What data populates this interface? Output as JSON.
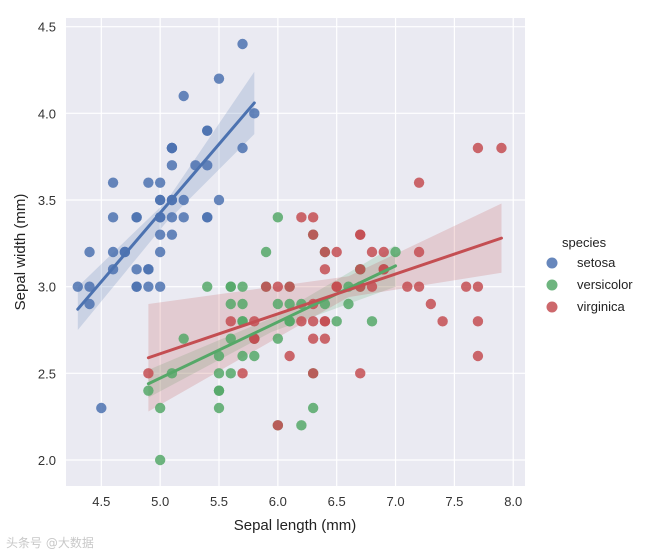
{
  "chart_data": {
    "type": "scatter",
    "title": "",
    "xlabel": "Sepal length (mm)",
    "ylabel": "Sepal width (mm)",
    "xlim": [
      4.2,
      8.1
    ],
    "ylim": [
      1.85,
      4.55
    ],
    "xticks": [
      "4.5",
      "5.0",
      "5.5",
      "6.0",
      "6.5",
      "7.0",
      "7.5",
      "8.0"
    ],
    "yticks": [
      "2.0",
      "2.5",
      "3.0",
      "3.5",
      "4.0",
      "4.5"
    ],
    "grid": true,
    "background": "#eaeaf2",
    "legend": {
      "title": "species",
      "placement": "right"
    },
    "series": [
      {
        "name": "setosa",
        "color": "#4c72b0",
        "points": [
          [
            5.1,
            3.5
          ],
          [
            4.9,
            3.0
          ],
          [
            4.7,
            3.2
          ],
          [
            4.6,
            3.1
          ],
          [
            5.0,
            3.6
          ],
          [
            5.4,
            3.9
          ],
          [
            4.6,
            3.4
          ],
          [
            5.0,
            3.4
          ],
          [
            4.4,
            2.9
          ],
          [
            4.9,
            3.1
          ],
          [
            5.4,
            3.7
          ],
          [
            4.8,
            3.4
          ],
          [
            4.8,
            3.0
          ],
          [
            4.3,
            3.0
          ],
          [
            5.8,
            4.0
          ],
          [
            5.7,
            4.4
          ],
          [
            5.4,
            3.9
          ],
          [
            5.1,
            3.5
          ],
          [
            5.7,
            3.8
          ],
          [
            5.1,
            3.8
          ],
          [
            5.4,
            3.4
          ],
          [
            5.1,
            3.7
          ],
          [
            4.6,
            3.6
          ],
          [
            5.1,
            3.3
          ],
          [
            4.8,
            3.4
          ],
          [
            5.0,
            3.0
          ],
          [
            5.0,
            3.4
          ],
          [
            5.2,
            3.5
          ],
          [
            5.2,
            3.4
          ],
          [
            4.7,
            3.2
          ],
          [
            4.8,
            3.1
          ],
          [
            5.4,
            3.4
          ],
          [
            5.2,
            4.1
          ],
          [
            5.5,
            4.2
          ],
          [
            4.9,
            3.1
          ],
          [
            5.0,
            3.2
          ],
          [
            5.5,
            3.5
          ],
          [
            4.9,
            3.6
          ],
          [
            4.4,
            3.0
          ],
          [
            5.1,
            3.4
          ],
          [
            5.0,
            3.5
          ],
          [
            4.5,
            2.3
          ],
          [
            4.4,
            3.2
          ],
          [
            5.0,
            3.5
          ],
          [
            5.1,
            3.8
          ],
          [
            4.8,
            3.0
          ],
          [
            5.1,
            3.8
          ],
          [
            4.6,
            3.2
          ],
          [
            5.3,
            3.7
          ],
          [
            5.0,
            3.3
          ]
        ],
        "fit_line": [
          [
            4.3,
            2.87
          ],
          [
            5.8,
            4.06
          ]
        ],
        "ci_band": {
          "x": [
            4.3,
            5.05,
            5.8
          ],
          "lower": [
            2.75,
            3.37,
            3.88
          ],
          "upper": [
            3.0,
            3.49,
            4.24
          ]
        }
      },
      {
        "name": "versicolor",
        "color": "#55a868",
        "points": [
          [
            7.0,
            3.2
          ],
          [
            6.4,
            3.2
          ],
          [
            6.9,
            3.1
          ],
          [
            5.5,
            2.3
          ],
          [
            6.5,
            2.8
          ],
          [
            5.7,
            2.8
          ],
          [
            6.3,
            3.3
          ],
          [
            4.9,
            2.4
          ],
          [
            6.6,
            2.9
          ],
          [
            5.2,
            2.7
          ],
          [
            5.0,
            2.0
          ],
          [
            5.9,
            3.0
          ],
          [
            6.0,
            2.2
          ],
          [
            6.1,
            2.9
          ],
          [
            5.6,
            2.9
          ],
          [
            6.7,
            3.1
          ],
          [
            5.6,
            3.0
          ],
          [
            5.8,
            2.7
          ],
          [
            6.2,
            2.2
          ],
          [
            5.6,
            2.5
          ],
          [
            5.9,
            3.2
          ],
          [
            6.1,
            2.8
          ],
          [
            6.3,
            2.5
          ],
          [
            6.1,
            2.8
          ],
          [
            6.4,
            2.9
          ],
          [
            6.6,
            3.0
          ],
          [
            6.8,
            2.8
          ],
          [
            6.7,
            3.0
          ],
          [
            6.0,
            2.9
          ],
          [
            5.7,
            2.6
          ],
          [
            5.5,
            2.4
          ],
          [
            5.5,
            2.4
          ],
          [
            5.8,
            2.7
          ],
          [
            6.0,
            2.7
          ],
          [
            5.4,
            3.0
          ],
          [
            6.0,
            3.4
          ],
          [
            6.7,
            3.1
          ],
          [
            6.3,
            2.3
          ],
          [
            5.6,
            3.0
          ],
          [
            5.5,
            2.5
          ],
          [
            5.5,
            2.6
          ],
          [
            6.1,
            3.0
          ],
          [
            5.8,
            2.6
          ],
          [
            5.0,
            2.3
          ],
          [
            5.6,
            2.7
          ],
          [
            5.7,
            3.0
          ],
          [
            5.7,
            2.9
          ],
          [
            6.2,
            2.9
          ],
          [
            5.1,
            2.5
          ],
          [
            5.7,
            2.8
          ]
        ],
        "fit_line": [
          [
            4.9,
            2.44
          ],
          [
            7.0,
            3.12
          ]
        ],
        "ci_band": {
          "x": [
            4.9,
            5.95,
            7.0
          ],
          "lower": [
            2.36,
            2.74,
            3.0
          ],
          "upper": [
            2.52,
            2.82,
            3.24
          ]
        }
      },
      {
        "name": "virginica",
        "color": "#c44e52",
        "points": [
          [
            6.3,
            3.3
          ],
          [
            5.8,
            2.7
          ],
          [
            7.1,
            3.0
          ],
          [
            6.3,
            2.9
          ],
          [
            6.5,
            3.0
          ],
          [
            7.6,
            3.0
          ],
          [
            4.9,
            2.5
          ],
          [
            7.3,
            2.9
          ],
          [
            6.7,
            2.5
          ],
          [
            7.2,
            3.6
          ],
          [
            6.5,
            3.2
          ],
          [
            6.4,
            2.7
          ],
          [
            6.8,
            3.0
          ],
          [
            5.7,
            2.5
          ],
          [
            5.8,
            2.8
          ],
          [
            6.4,
            3.2
          ],
          [
            6.5,
            3.0
          ],
          [
            7.7,
            3.8
          ],
          [
            7.7,
            2.6
          ],
          [
            6.0,
            2.2
          ],
          [
            6.9,
            3.2
          ],
          [
            5.6,
            2.8
          ],
          [
            7.7,
            2.8
          ],
          [
            6.3,
            2.7
          ],
          [
            6.7,
            3.3
          ],
          [
            7.2,
            3.2
          ],
          [
            6.2,
            2.8
          ],
          [
            6.1,
            3.0
          ],
          [
            6.4,
            2.8
          ],
          [
            7.2,
            3.0
          ],
          [
            7.4,
            2.8
          ],
          [
            7.9,
            3.8
          ],
          [
            6.4,
            2.8
          ],
          [
            6.3,
            2.8
          ],
          [
            6.1,
            2.6
          ],
          [
            7.7,
            3.0
          ],
          [
            6.3,
            3.4
          ],
          [
            6.4,
            3.1
          ],
          [
            6.0,
            3.0
          ],
          [
            6.9,
            3.1
          ],
          [
            6.7,
            3.1
          ],
          [
            6.9,
            3.1
          ],
          [
            5.8,
            2.7
          ],
          [
            6.8,
            3.2
          ],
          [
            6.7,
            3.3
          ],
          [
            6.7,
            3.0
          ],
          [
            6.3,
            2.5
          ],
          [
            6.5,
            3.0
          ],
          [
            6.2,
            3.4
          ],
          [
            5.9,
            3.0
          ]
        ],
        "fit_line": [
          [
            4.9,
            2.59
          ],
          [
            7.9,
            3.28
          ]
        ],
        "ci_band": {
          "x": [
            4.9,
            6.6,
            7.9
          ],
          "lower": [
            2.28,
            2.94,
            3.08
          ],
          "upper": [
            2.9,
            3.06,
            3.48
          ]
        }
      }
    ]
  },
  "watermark": "头条号 @大数据"
}
